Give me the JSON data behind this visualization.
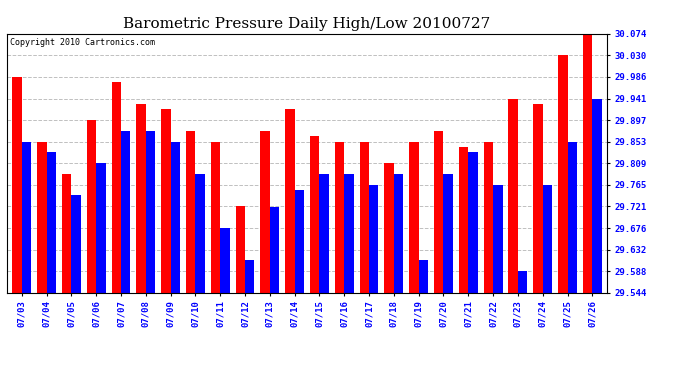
{
  "title": "Barometric Pressure Daily High/Low 20100727",
  "copyright": "Copyright 2010 Cartronics.com",
  "categories": [
    "07/03",
    "07/04",
    "07/05",
    "07/06",
    "07/07",
    "07/08",
    "07/09",
    "07/10",
    "07/11",
    "07/12",
    "07/13",
    "07/14",
    "07/15",
    "07/16",
    "07/17",
    "07/18",
    "07/19",
    "07/20",
    "07/21",
    "07/22",
    "07/23",
    "07/24",
    "07/25",
    "07/26"
  ],
  "highs": [
    29.986,
    29.853,
    29.787,
    29.897,
    29.975,
    29.93,
    29.92,
    29.875,
    29.853,
    29.721,
    29.875,
    29.92,
    29.864,
    29.853,
    29.853,
    29.809,
    29.853,
    29.875,
    29.842,
    29.853,
    29.941,
    29.93,
    30.03,
    30.074
  ],
  "lows": [
    29.853,
    29.831,
    29.743,
    29.809,
    29.875,
    29.875,
    29.853,
    29.787,
    29.676,
    29.61,
    29.72,
    29.753,
    29.787,
    29.787,
    29.765,
    29.787,
    29.61,
    29.787,
    29.831,
    29.765,
    29.588,
    29.765,
    29.853,
    29.941
  ],
  "high_color": "#FF0000",
  "low_color": "#0000FF",
  "bg_color": "#FFFFFF",
  "grid_color": "#C0C0C0",
  "ymin": 29.544,
  "ymax": 30.074,
  "yticks": [
    29.544,
    29.588,
    29.632,
    29.676,
    29.721,
    29.765,
    29.809,
    29.853,
    29.897,
    29.941,
    29.986,
    30.03,
    30.074
  ],
  "title_fontsize": 11,
  "copyright_fontsize": 6,
  "tick_fontsize": 6.5,
  "bar_width": 0.38
}
